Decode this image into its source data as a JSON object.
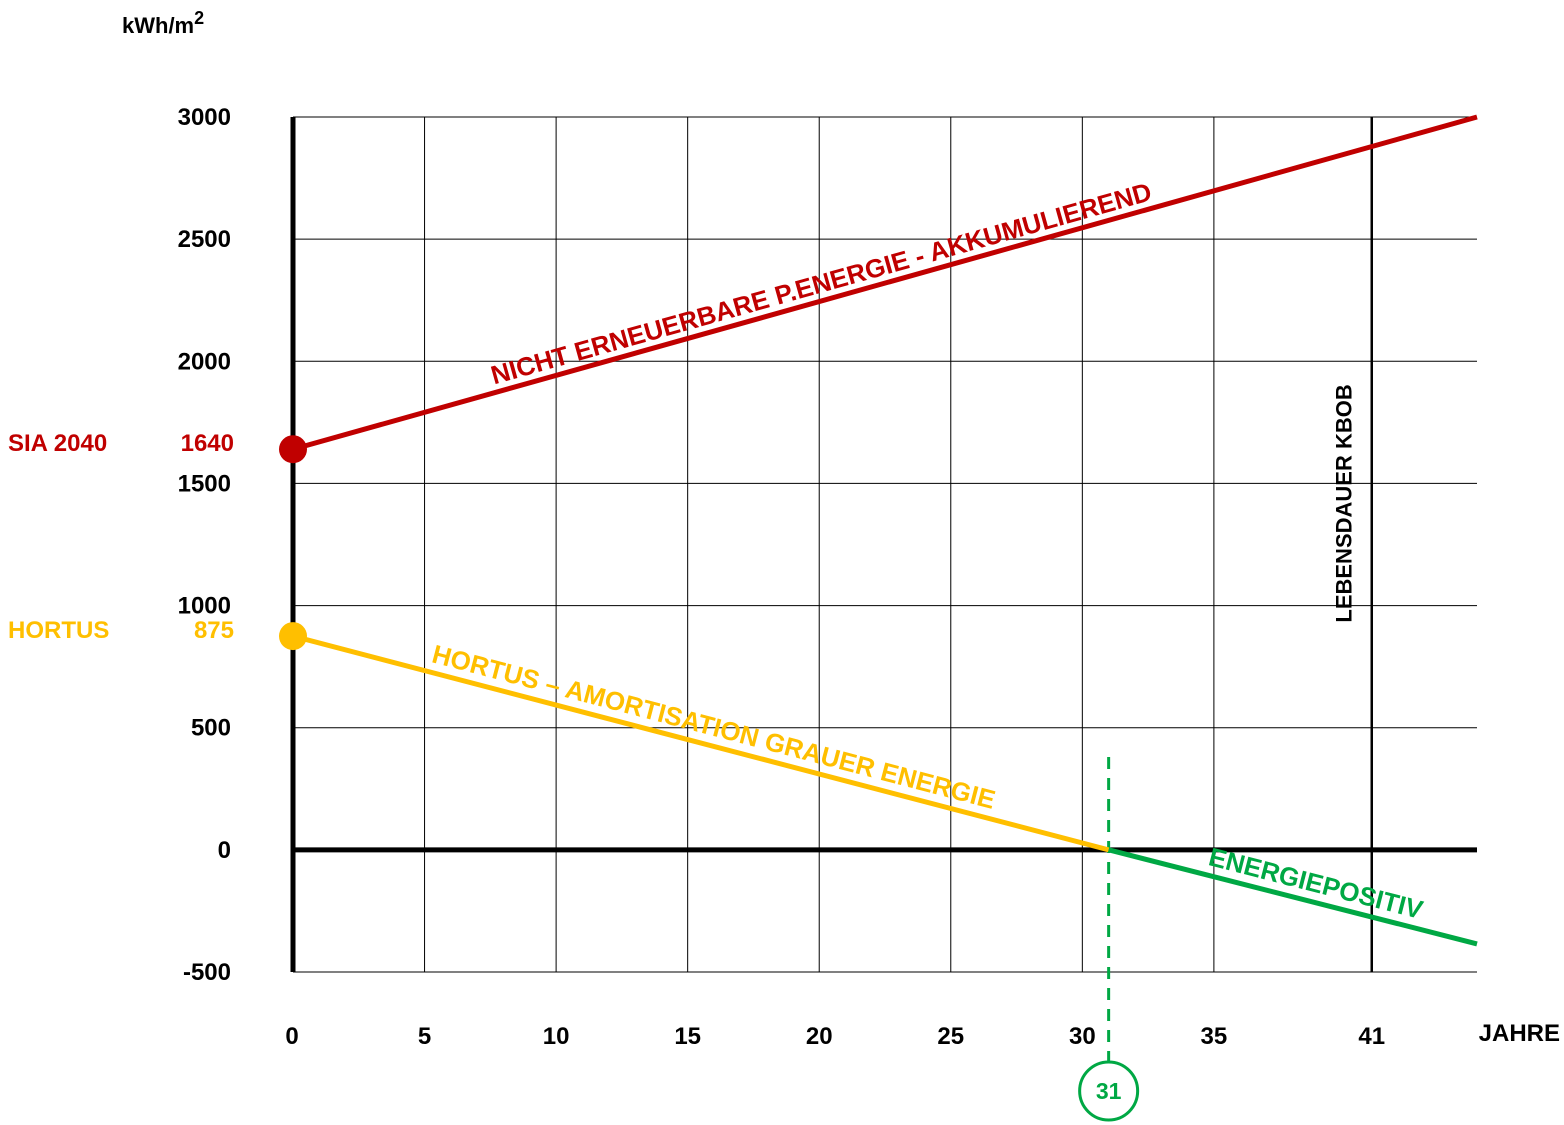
{
  "chart_data": {
    "type": "line",
    "title": "",
    "ylabel_prefix": "kWh/m",
    "ylabel_sup": "2",
    "xlabel": "JAHRE",
    "xlim": [
      0,
      45
    ],
    "ylim": [
      -500,
      3000
    ],
    "x_ticks": [
      0,
      5,
      10,
      15,
      20,
      25,
      30,
      35,
      41
    ],
    "x_tick_labels": [
      "0",
      "5",
      "10",
      "15",
      "20",
      "25",
      "30",
      "35",
      "41"
    ],
    "y_ticks": [
      -500,
      0,
      500,
      1000,
      1500,
      2000,
      2500,
      3000
    ],
    "y_tick_labels": [
      "-500",
      "0",
      "500",
      "1000",
      "1500",
      "2000",
      "2500",
      "3000"
    ],
    "grid": true,
    "series": [
      {
        "name": "NICHT ERNEUERBARE P.ENERGIE - AKKUMULIEREND",
        "color": "#c00000",
        "points": [
          [
            0,
            1640
          ],
          [
            45,
            3000
          ]
        ]
      },
      {
        "name": "HORTUS – AMORTISATION GRAUER ENERGIE",
        "color": "#ffbf00",
        "points": [
          [
            0,
            875
          ],
          [
            31,
            0
          ]
        ]
      },
      {
        "name": "ENERGIEPOSITIV",
        "color": "#00a844",
        "points": [
          [
            31,
            0
          ],
          [
            45,
            -385
          ]
        ]
      }
    ],
    "start_markers": [
      {
        "label": "SIA 2040",
        "value_label": "1640",
        "x": 0,
        "y": 1640,
        "color": "#c00000"
      },
      {
        "label": "HORTUS",
        "value_label": "875",
        "x": 0,
        "y": 875,
        "color": "#ffbf00"
      }
    ],
    "annotations": {
      "lifetime": {
        "x": 41,
        "label": "LEBENSDAUER KBOB"
      },
      "payback": {
        "x": 31,
        "label": "31",
        "color": "#00a844"
      }
    }
  }
}
